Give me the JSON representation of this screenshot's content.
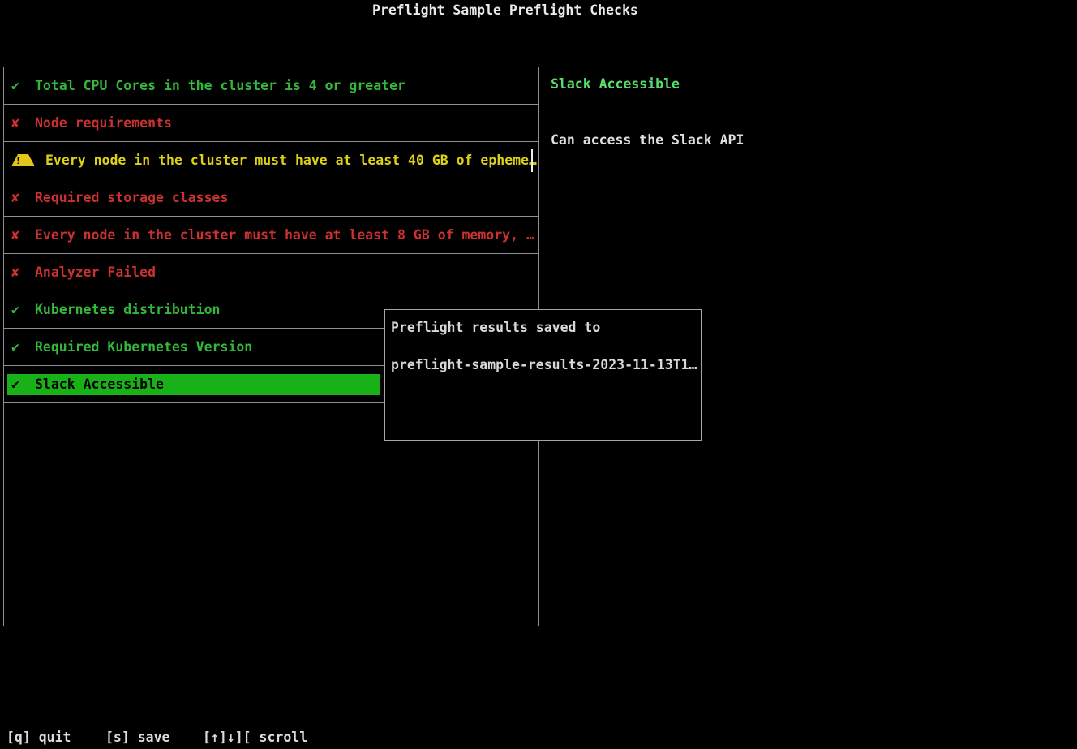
{
  "app": {
    "title": "Preflight Sample Preflight Checks"
  },
  "icons": {
    "check": "✔",
    "cross": "✘",
    "warning_mark": "!"
  },
  "checks": [
    {
      "status": "pass",
      "icon": "check",
      "label": "Total CPU Cores in the cluster is 4 or greater",
      "selected": false
    },
    {
      "status": "fail",
      "icon": "cross",
      "label": "Node requirements",
      "selected": false
    },
    {
      "status": "warn",
      "icon": "warning",
      "label": "Every node in the cluster must have at least 40 GB of epheme…",
      "selected": false
    },
    {
      "status": "fail",
      "icon": "cross",
      "label": "Required storage classes",
      "selected": false
    },
    {
      "status": "fail",
      "icon": "cross",
      "label": "Every node in the cluster must have at least 8 GB of memory, …",
      "selected": false
    },
    {
      "status": "fail",
      "icon": "cross",
      "label": "Analyzer Failed",
      "selected": false
    },
    {
      "status": "pass",
      "icon": "check",
      "label": "Kubernetes distribution",
      "selected": false
    },
    {
      "status": "pass",
      "icon": "check",
      "label": "Required Kubernetes Version",
      "selected": false
    },
    {
      "status": "pass",
      "icon": "check",
      "label": "Slack Accessible",
      "selected": true
    }
  ],
  "detail": {
    "title": "Slack Accessible",
    "description": "Can access the Slack API"
  },
  "dialog": {
    "line1": "Preflight results saved to",
    "line2": "preflight-sample-results-2023-11-13T1…"
  },
  "footer": {
    "quit": "[q] quit",
    "save": "[s] save",
    "scroll": "[↑]↓][ scroll"
  },
  "colors": {
    "background": "#000000",
    "pass_green": "#33b83c",
    "fail_red": "#cb3131",
    "warn_yellow": "#ddd117",
    "warn_triangle": "#e3c51c",
    "selected_bg": "#18b218",
    "selected_text": "#000000",
    "detail_title_green": "#57de6e",
    "text_white": "#e4e4e4",
    "border_gray": "#8f8f8f"
  }
}
